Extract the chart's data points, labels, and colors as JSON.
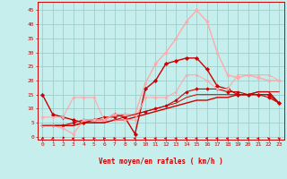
{
  "xlabel": "Vent moyen/en rafales ( km/h )",
  "xlim": [
    -0.5,
    23.5
  ],
  "ylim": [
    -1,
    48
  ],
  "yticks": [
    0,
    5,
    10,
    15,
    20,
    25,
    30,
    35,
    40,
    45
  ],
  "xticks": [
    0,
    1,
    2,
    3,
    4,
    5,
    6,
    7,
    8,
    9,
    10,
    11,
    12,
    13,
    14,
    15,
    16,
    17,
    18,
    19,
    20,
    21,
    22,
    23
  ],
  "bg_color": "#c5eeed",
  "grid_color": "#9dcfce",
  "axis_color": "#cc0000",
  "lines": [
    {
      "x": [
        0,
        1,
        2,
        3,
        4,
        5,
        6,
        7,
        8,
        9,
        10,
        11,
        12,
        13,
        14,
        15,
        16,
        17,
        18,
        19,
        20,
        21,
        22,
        23
      ],
      "y": [
        4,
        4,
        4,
        4,
        5,
        5,
        5,
        6,
        6,
        7,
        8,
        9,
        10,
        11,
        12,
        13,
        13,
        14,
        14,
        15,
        15,
        16,
        16,
        12
      ],
      "color": "#cc0000",
      "lw": 1.0,
      "marker": null,
      "ms": 0
    },
    {
      "x": [
        0,
        1,
        2,
        3,
        4,
        5,
        6,
        7,
        8,
        9,
        10,
        11,
        12,
        13,
        14,
        15,
        16,
        17,
        18,
        19,
        20,
        21,
        22,
        23
      ],
      "y": [
        4,
        4,
        4,
        5,
        6,
        6,
        7,
        7,
        8,
        8,
        9,
        10,
        11,
        13,
        16,
        17,
        17,
        17,
        16,
        16,
        15,
        15,
        14,
        12
      ],
      "color": "#cc0000",
      "lw": 0.8,
      "marker": "D",
      "ms": 1.8
    },
    {
      "x": [
        0,
        1,
        2,
        3,
        4,
        5,
        6,
        7,
        8,
        9,
        10,
        11,
        12,
        13,
        14,
        15,
        16,
        17,
        18,
        19,
        20,
        21,
        22,
        23
      ],
      "y": [
        15,
        8,
        7,
        6,
        5,
        6,
        6,
        8,
        7,
        1,
        17,
        20,
        26,
        27,
        28,
        28,
        24,
        18,
        17,
        15,
        15,
        15,
        15,
        12
      ],
      "color": "#cc0000",
      "lw": 1.0,
      "marker": "D",
      "ms": 2.2
    },
    {
      "x": [
        0,
        1,
        2,
        3,
        4,
        5,
        6,
        7,
        8,
        9,
        10,
        11,
        12,
        13,
        14,
        15,
        16,
        17,
        18,
        19,
        20,
        21,
        22,
        23
      ],
      "y": [
        4,
        4,
        3,
        1,
        6,
        6,
        6,
        8,
        8,
        8,
        19,
        26,
        30,
        35,
        41,
        45,
        41,
        30,
        22,
        21,
        22,
        21,
        20,
        20
      ],
      "color": "#ffaaaa",
      "lw": 1.0,
      "marker": "o",
      "ms": 2.2
    },
    {
      "x": [
        0,
        1,
        2,
        3,
        4,
        5,
        6,
        7,
        8,
        9,
        10,
        11,
        12,
        13,
        14,
        15,
        16,
        17,
        18,
        19,
        20,
        21,
        22,
        23
      ],
      "y": [
        7,
        7,
        7,
        14,
        14,
        14,
        6,
        6,
        6,
        6,
        14,
        14,
        14,
        16,
        22,
        22,
        20,
        17,
        17,
        22,
        22,
        22,
        22,
        20
      ],
      "color": "#ffaaaa",
      "lw": 0.8,
      "marker": "o",
      "ms": 1.8
    },
    {
      "x": [
        0,
        1,
        2,
        3,
        4,
        5,
        6,
        7,
        8,
        9,
        10,
        11,
        12,
        13,
        14,
        15,
        16,
        17,
        18,
        19,
        20,
        21,
        22,
        23
      ],
      "y": [
        4,
        4,
        4,
        4,
        5,
        5,
        5,
        6,
        7,
        8,
        9,
        10,
        11,
        12,
        14,
        15,
        15,
        15,
        15,
        15,
        15,
        16,
        16,
        16
      ],
      "color": "#cc0000",
      "lw": 0.7,
      "marker": null,
      "ms": 0
    }
  ],
  "wind_angles": [
    225,
    225,
    200,
    45,
    270,
    90,
    90,
    90,
    270,
    270,
    270,
    270,
    270,
    270,
    270,
    270,
    270,
    270,
    270,
    270,
    270,
    270,
    315,
    315
  ]
}
